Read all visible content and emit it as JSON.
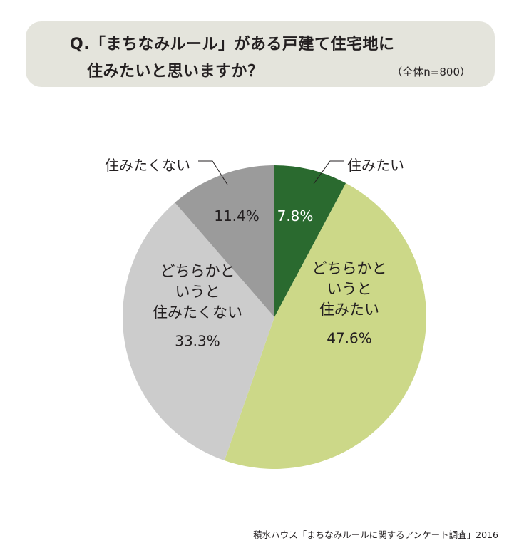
{
  "question": {
    "line1": "Q.「まちなみルール」がある戸建て住宅地に",
    "line2": "住みたいと思いますか？",
    "sample": "（全体n=800）"
  },
  "chart_data": {
    "type": "pie",
    "slices": [
      {
        "label_lines": [
          "住みたい"
        ],
        "value": 7.8,
        "value_label": "7.8%",
        "color": "#2a6a2f",
        "text_color": "#ffffff",
        "outside_label": true
      },
      {
        "label_lines": [
          "どちらかと",
          "いうと",
          "住みたい"
        ],
        "value": 47.6,
        "value_label": "47.6%",
        "color": "#ccd888",
        "text_color": "#231f20",
        "outside_label": false
      },
      {
        "label_lines": [
          "どちらかと",
          "いうと",
          "住みたくない"
        ],
        "value": 33.3,
        "value_label": "33.3%",
        "color": "#cccccc",
        "text_color": "#231f20",
        "outside_label": false
      },
      {
        "label_lines": [
          "住みたくない"
        ],
        "value": 11.4,
        "value_label": "11.4%",
        "color": "#9b9b9b",
        "text_color": "#231f20",
        "outside_label": true
      }
    ],
    "start_angle": "12 o'clock",
    "direction": "clockwise"
  },
  "source": "積水ハウス「まちなみルールに関するアンケート調査」2016"
}
